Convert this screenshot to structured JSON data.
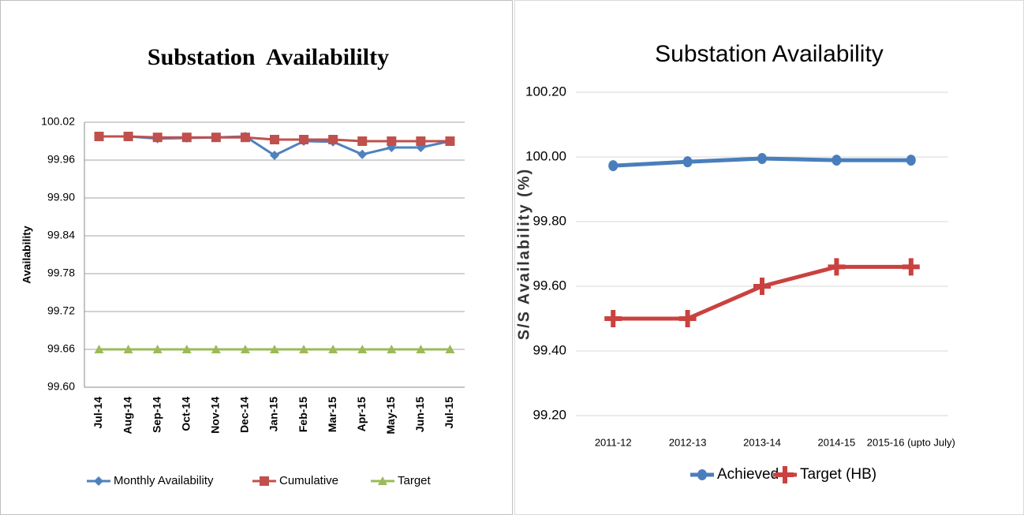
{
  "chart_data": [
    {
      "type": "line",
      "title": "Substation  Availabililty",
      "y_label": "Availability",
      "categories": [
        "Jul-14",
        "Aug-14",
        "Sep-14",
        "Oct-14",
        "Nov-14",
        "Dec-14",
        "Jan-15",
        "Feb-15",
        "Mar-15",
        "Apr-15",
        "May-15",
        "Jun-15",
        "Jul-15"
      ],
      "series": [
        {
          "name": "Monthly Availability",
          "color": "#4f81bd",
          "values": [
            99.9975,
            99.9975,
            99.994,
            99.995,
            99.996,
            99.9975,
            99.9675,
            99.99,
            99.989,
            99.969,
            99.98,
            99.98,
            99.99
          ]
        },
        {
          "name": "Cumulative",
          "color": "#c0504d",
          "values": [
            99.9975,
            99.9975,
            99.996,
            99.996,
            99.996,
            99.996,
            99.9925,
            99.9925,
            99.9925,
            99.99,
            99.99,
            99.99,
            99.99
          ]
        },
        {
          "name": "Target",
          "color": "#9bbb59",
          "values": [
            99.66,
            99.66,
            99.66,
            99.66,
            99.66,
            99.66,
            99.66,
            99.66,
            99.66,
            99.66,
            99.66,
            99.66,
            99.66
          ]
        }
      ],
      "ylim": [
        99.6,
        100.02
      ],
      "yticks": [
        {
          "value": 99.6,
          "label": "99.60"
        },
        99.66,
        99.72,
        99.78,
        99.84,
        {
          "value": 99.9,
          "label": "99.90"
        },
        99.96,
        100.02
      ],
      "grid": true,
      "legend": "bottom"
    },
    {
      "type": "line",
      "title": "Substation Availability",
      "y_label": "S/S Availability (%)",
      "categories": [
        "2011-12",
        "2012-13",
        "2013-14",
        "2014-15",
        "2015-16 (upto July)"
      ],
      "series": [
        {
          "name": "Achieved",
          "color": "#4a7ebb",
          "values": [
            99.973,
            99.985,
            99.995,
            99.99,
            99.99
          ]
        },
        {
          "name": "Target (HB)",
          "color": "#c9423f",
          "values": [
            99.5,
            99.5,
            99.6,
            99.66,
            99.66
          ]
        }
      ],
      "ylim": [
        99.2,
        100.2
      ],
      "yticks": [
        {
          "value": 99.2,
          "label": "99.20"
        },
        {
          "value": 99.4,
          "label": "99.40"
        },
        {
          "value": 99.6,
          "label": "99.60"
        },
        {
          "value": 99.8,
          "label": "99.80"
        },
        {
          "value": 100,
          "label": "100.00"
        },
        {
          "value": 100.2,
          "label": "100.20"
        }
      ],
      "grid": true,
      "legend": "bottom"
    }
  ]
}
